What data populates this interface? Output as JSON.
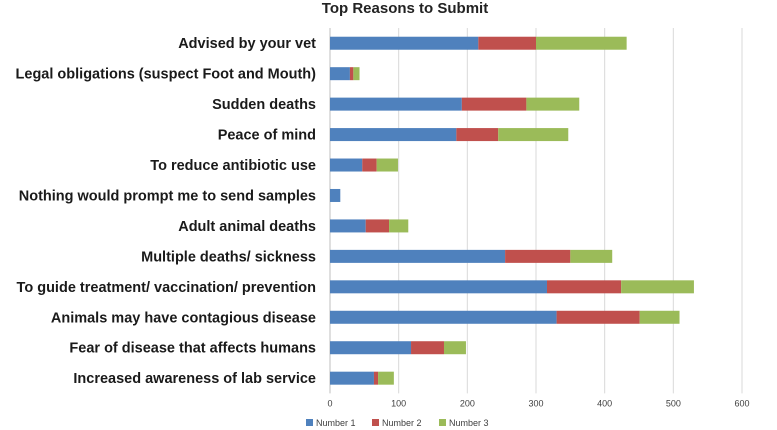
{
  "chart_data": {
    "type": "bar",
    "orientation": "horizontal",
    "stacked": true,
    "title": "Top Reasons to Submit",
    "xlabel": "",
    "ylabel": "",
    "xlim": [
      0,
      600
    ],
    "xticks": [
      0,
      100,
      200,
      300,
      400,
      500,
      600
    ],
    "grid": true,
    "legend_position": "bottom",
    "categories": [
      "Advised by your vet",
      "Legal obligations (suspect Foot and Mouth)",
      "Sudden deaths",
      "Peace of mind",
      "To reduce antibiotic use",
      "Nothing would prompt me to send samples",
      "Adult animal deaths",
      "Multiple deaths/ sickness",
      "To guide treatment/ vaccination/ prevention",
      "Animals may have contagious disease",
      "Fear of disease that affects humans",
      "Increased awareness of lab service"
    ],
    "series": [
      {
        "name": "Number 1",
        "color": "#4f81bd",
        "values": [
          216,
          29,
          192,
          184,
          47,
          15,
          52,
          255,
          316,
          330,
          118,
          64
        ]
      },
      {
        "name": "Number 2",
        "color": "#c0504d",
        "values": [
          84,
          5,
          94,
          61,
          21,
          0,
          34,
          95,
          108,
          121,
          48,
          6
        ]
      },
      {
        "name": "Number 3",
        "color": "#9bbb59",
        "values": [
          132,
          9,
          77,
          102,
          31,
          0,
          28,
          61,
          106,
          58,
          32,
          23
        ]
      }
    ]
  }
}
